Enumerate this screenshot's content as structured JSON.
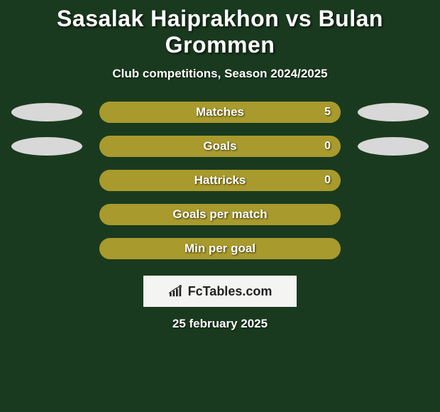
{
  "title": "Sasalak Haiprakhon vs Bulan Grommen",
  "subtitle": "Club competitions, Season 2024/2025",
  "background_color": "#1a3a1f",
  "text_color": "#ffffff",
  "rows": [
    {
      "label": "Matches",
      "value": "5",
      "bar_bg": "#a89a2c",
      "fill_pct": 100,
      "fill_color": "#a89a2c",
      "left_ellipse_color": "#d8d8d8",
      "right_ellipse_color": "#d8d8d8",
      "show_value": true,
      "show_ellipses": true
    },
    {
      "label": "Goals",
      "value": "0",
      "bar_bg": "#a89a2c",
      "fill_pct": 100,
      "fill_color": "#a89a2c",
      "left_ellipse_color": "#d8d8d8",
      "right_ellipse_color": "#d8d8d8",
      "show_value": true,
      "show_ellipses": true
    },
    {
      "label": "Hattricks",
      "value": "0",
      "bar_bg": "#a89a2c",
      "fill_pct": 100,
      "fill_color": "#a89a2c",
      "left_ellipse_color": null,
      "right_ellipse_color": null,
      "show_value": true,
      "show_ellipses": false
    },
    {
      "label": "Goals per match",
      "value": "",
      "bar_bg": "#1a3a1f",
      "fill_pct": 100,
      "fill_color": "#a89a2c",
      "border_only": true,
      "left_ellipse_color": null,
      "right_ellipse_color": null,
      "show_value": false,
      "show_ellipses": false
    },
    {
      "label": "Min per goal",
      "value": "",
      "bar_bg": "#1a3a1f",
      "fill_pct": 100,
      "fill_color": "#a89a2c",
      "border_only": true,
      "left_ellipse_color": null,
      "right_ellipse_color": null,
      "show_value": false,
      "show_ellipses": false
    }
  ],
  "logo": {
    "text": "FcTables.com",
    "bg_color": "#f4f4f2",
    "text_color": "#222222",
    "icon_color": "#222222"
  },
  "date": "25 february 2025"
}
